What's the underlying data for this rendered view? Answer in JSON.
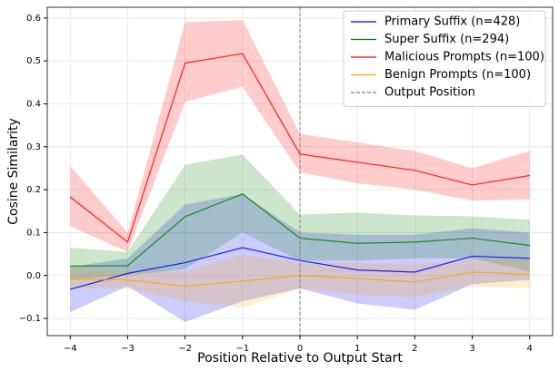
{
  "chart_data": {
    "type": "line",
    "x_label": "Position Relative to Output Start",
    "y_label": "Cosine Similarity",
    "x": [
      -4,
      -3,
      -2,
      -1,
      0,
      1,
      2,
      3,
      4
    ],
    "series": [
      {
        "name": "Primary Suffix (n=428)",
        "color": "#0000ff",
        "values": [
          -0.032,
          0.005,
          0.03,
          0.065,
          0.035,
          0.013,
          0.008,
          0.045,
          0.04
        ],
        "lower": [
          -0.085,
          -0.025,
          -0.108,
          -0.06,
          -0.03,
          -0.065,
          -0.08,
          -0.02,
          -0.01
        ],
        "upper": [
          0.02,
          0.04,
          0.165,
          0.19,
          0.1,
          0.095,
          0.095,
          0.11,
          0.1
        ]
      },
      {
        "name": "Super Suffix (n=294)",
        "color": "#008000",
        "values": [
          0.022,
          0.023,
          0.137,
          0.19,
          0.087,
          0.075,
          0.078,
          0.087,
          0.07
        ],
        "lower": [
          -0.01,
          0.0,
          0.015,
          0.1,
          0.035,
          0.035,
          0.04,
          0.04,
          0.01
        ],
        "upper": [
          0.065,
          0.055,
          0.258,
          0.282,
          0.142,
          0.147,
          0.14,
          0.138,
          0.13
        ]
      },
      {
        "name": "Malicious Prompts (n=100)",
        "color": "#ff0000",
        "values": [
          0.183,
          0.078,
          0.495,
          0.517,
          0.283,
          0.264,
          0.245,
          0.211,
          0.233
        ],
        "lower": [
          0.115,
          0.055,
          0.405,
          0.44,
          0.24,
          0.215,
          0.2,
          0.175,
          0.177
        ],
        "upper": [
          0.255,
          0.1,
          0.59,
          0.595,
          0.33,
          0.31,
          0.29,
          0.25,
          0.29
        ]
      },
      {
        "name": "Benign Prompts (n=100)",
        "color": "#ffa500",
        "values": [
          -0.008,
          -0.01,
          -0.025,
          -0.013,
          0.0,
          -0.007,
          -0.015,
          0.008,
          0.003
        ],
        "lower": [
          -0.03,
          -0.03,
          -0.06,
          -0.075,
          -0.03,
          -0.045,
          -0.05,
          -0.025,
          -0.03
        ],
        "upper": [
          0.02,
          0.01,
          0.01,
          0.048,
          0.03,
          0.03,
          0.025,
          0.04,
          0.035
        ]
      }
    ],
    "vline": {
      "x": 0,
      "name": "Output Position",
      "color": "#808080"
    },
    "xlim": [
      -4.4,
      4.4
    ],
    "ylim": [
      -0.14,
      0.625
    ],
    "xticks": [
      {
        "value": -4,
        "label": "−4"
      },
      {
        "value": -3,
        "label": "−3"
      },
      {
        "value": -2,
        "label": "−2"
      },
      {
        "value": -1,
        "label": "−1"
      },
      0,
      1,
      2,
      3,
      4
    ],
    "yticks": [
      {
        "value": -0.1,
        "label": "−0.1"
      },
      {
        "value": 0,
        "label": "0.0"
      },
      0.1,
      0.2,
      0.3,
      0.4,
      0.5,
      0.6
    ],
    "grid": true,
    "band_opacity": 0.2,
    "legend": "upper right"
  }
}
